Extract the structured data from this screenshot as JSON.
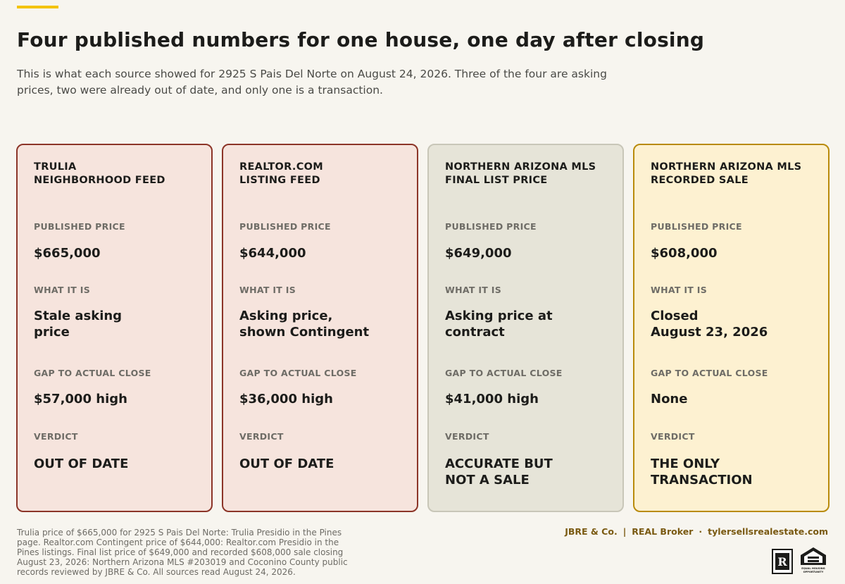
{
  "header": {
    "title": "Four published numbers for one house, one day after closing",
    "subtitle": "This is what each source showed for 2925 S Pais Del Norte on August 24, 2026. Three of the four are asking prices, two were already out of date, and only one is a transaction."
  },
  "colors": {
    "accent": "#f3c300",
    "out_of_date_border": "#8c3528",
    "out_of_date_fill": "#f6e4dd",
    "neutral_fill": "#e6e4d8",
    "sale_border": "#b98b0c",
    "sale_fill": "#fdf1d1"
  },
  "labels": {
    "published_price": "PUBLISHED PRICE",
    "what_it_is": "WHAT IT IS",
    "gap": "GAP TO ACTUAL CLOSE",
    "verdict": "VERDICT"
  },
  "cards": [
    {
      "title": [
        "TRULIA",
        "NEIGHBORHOOD FEED"
      ],
      "price": "$665,000",
      "what": [
        "Stale asking",
        "price"
      ],
      "gap": "$57,000 high",
      "verdict": [
        "OUT OF DATE"
      ]
    },
    {
      "title": [
        "REALTOR.COM",
        "LISTING FEED"
      ],
      "price": "$644,000",
      "what": [
        "Asking price,",
        "shown Contingent"
      ],
      "gap": "$36,000 high",
      "verdict": [
        "OUT OF DATE"
      ]
    },
    {
      "title": [
        "NORTHERN ARIZONA MLS",
        "FINAL LIST PRICE"
      ],
      "price": "$649,000",
      "what": [
        "Asking price at",
        "contract"
      ],
      "gap": "$41,000 high",
      "verdict": [
        "ACCURATE BUT",
        "NOT A SALE"
      ]
    },
    {
      "title": [
        "NORTHERN ARIZONA MLS",
        "RECORDED SALE"
      ],
      "price": "$608,000",
      "what": [
        "Closed",
        "August 23, 2026"
      ],
      "gap": "None",
      "verdict": [
        "THE ONLY",
        "TRANSACTION"
      ]
    }
  ],
  "footer": {
    "sources": "Trulia price of $665,000 for 2925 S Pais Del Norte: Trulia Presidio in the Pines page. Realtor.com Contingent price of $644,000: Realtor.com Presidio in the Pines listings. Final list price of $649,000 and recorded $608,000 sale closing August 23, 2026: Northern Arizona MLS #203019 and Coconino County public records reviewed by JBRE & Co. All sources read August 24, 2026.",
    "brand_name": "JBRE & Co.",
    "brokerage": "REAL Broker",
    "website": "tylersellsrealestate.com",
    "separator_1": "|",
    "separator_2": "·",
    "realtor_mark": "R",
    "realtor_caption": "REALTOR®",
    "eho_caption": "EQUAL HOUSING OPPORTUNITY"
  }
}
